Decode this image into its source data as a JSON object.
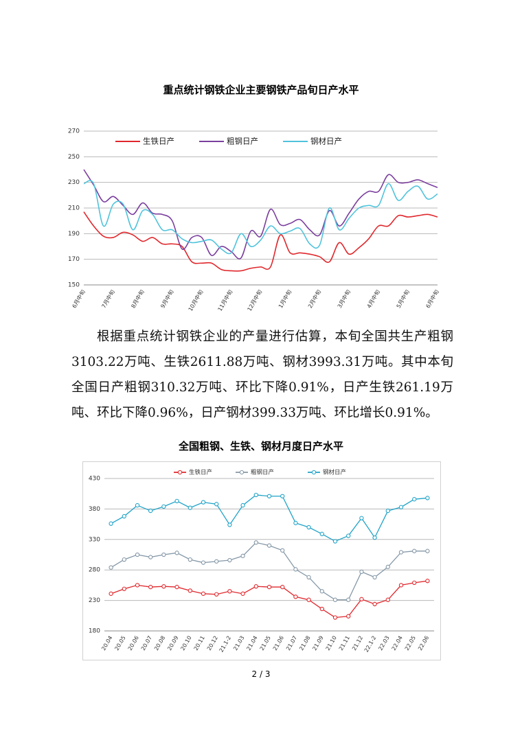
{
  "chart_data": [
    {
      "type": "line",
      "title": "重点统计钢铁企业主要钢铁产品旬日产水平",
      "categories": [
        "6月中旬",
        null,
        null,
        "7月中旬",
        null,
        null,
        "8月中旬",
        null,
        null,
        "9月中旬",
        null,
        null,
        "10月中旬",
        null,
        null,
        "11月中旬",
        null,
        null,
        "12月中旬",
        null,
        null,
        "1月中旬",
        null,
        null,
        "2月中旬",
        null,
        null,
        "3月中旬",
        null,
        null,
        "4月中旬",
        null,
        null,
        "5月中旬",
        null,
        null,
        "6月中旬"
      ],
      "series": [
        {
          "name": "生铁日产",
          "color": "#e0262b",
          "values": [
            207,
            196,
            188,
            187,
            191,
            189,
            184,
            187,
            182,
            182,
            180,
            168,
            167,
            167,
            162,
            161,
            161,
            163,
            164,
            164,
            189,
            175,
            175,
            174,
            172,
            168,
            183,
            174,
            179,
            186,
            196,
            196,
            204,
            203,
            204,
            205,
            203
          ]
        },
        {
          "name": "粗钢日产",
          "color": "#7b3f9e",
          "values": [
            240,
            228,
            215,
            219,
            212,
            205,
            214,
            206,
            205,
            200,
            178,
            187,
            187,
            173,
            180,
            176,
            171,
            192,
            188,
            209,
            197,
            198,
            201,
            193,
            189,
            208,
            196,
            206,
            217,
            223,
            223,
            236,
            230,
            230,
            232,
            229,
            226
          ]
        },
        {
          "name": "钢材日产",
          "color": "#4fc3dc",
          "values": [
            229,
            229,
            196,
            213,
            213,
            193,
            208,
            205,
            193,
            193,
            186,
            183,
            184,
            185,
            178,
            175,
            190,
            180,
            185,
            196,
            190,
            192,
            194,
            182,
            181,
            210,
            193,
            202,
            210,
            212,
            212,
            229,
            216,
            223,
            227,
            217,
            221
          ]
        }
      ],
      "ylim": [
        150,
        270
      ],
      "yticks": [
        150,
        170,
        190,
        210,
        230,
        250,
        270
      ],
      "grid": true,
      "smooth": true
    },
    {
      "type": "line",
      "title": "全国粗钢、生铁、钢材月度日产水平",
      "categories": [
        "20.04",
        "20.05",
        "20.06",
        "20.07",
        "20.08",
        "20.09",
        "20.10",
        "20.11",
        "20.12",
        "21.1-2",
        "21.03",
        "21.04",
        "21.05",
        "21.06",
        "21.07",
        "21.08",
        "21.09",
        "21.10",
        "21.11",
        "21.12",
        "22.1-2",
        "22.03",
        "22.04",
        "22.05",
        "22.06"
      ],
      "series": [
        {
          "name": "生铁日产",
          "color": "#e0262b",
          "values": [
            241,
            249,
            255,
            252,
            253,
            252,
            246,
            241,
            240,
            245,
            241,
            253,
            252,
            252,
            236,
            231,
            216,
            202,
            204,
            232,
            224,
            231,
            255,
            259,
            262
          ]
        },
        {
          "name": "粗钢日产",
          "color": "#8497a6",
          "values": [
            284,
            297,
            305,
            301,
            305,
            308,
            297,
            292,
            294,
            296,
            303,
            325,
            320,
            312,
            281,
            268,
            245,
            231,
            231,
            277,
            268,
            285,
            309,
            311,
            311
          ]
        },
        {
          "name": "钢材日产",
          "color": "#1fa3c8",
          "values": [
            356,
            368,
            386,
            377,
            384,
            393,
            382,
            391,
            388,
            354,
            386,
            403,
            401,
            401,
            357,
            350,
            339,
            327,
            336,
            365,
            333,
            377,
            383,
            396,
            398
          ]
        }
      ],
      "ylim": [
        180,
        430
      ],
      "yticks": [
        180,
        230,
        280,
        330,
        380,
        430
      ],
      "grid": true,
      "smooth": false,
      "markers": true
    }
  ],
  "paragraph": "根据重点统计钢铁企业的产量进行估算，本旬全国共生产粗钢3103.22万吨、生铁2611.88万吨、钢材3993.31万吨。其中本旬全国日产粗钢310.32万吨、环比下降0.91%，日产生铁261.19万吨、环比下降0.96%，日产钢材399.33万吨、环比增长0.91%。",
  "page_number": "2 / 3"
}
